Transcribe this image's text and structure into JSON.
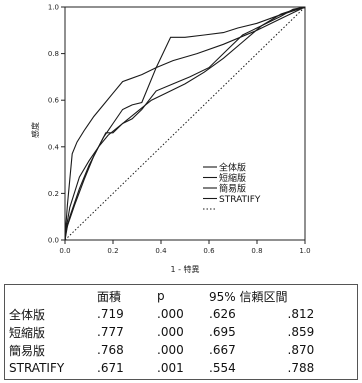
{
  "chart_data": {
    "type": "line",
    "title": "",
    "xlabel": "1 - 特異",
    "ylabel": "感度",
    "xlim": [
      0.0,
      1.0
    ],
    "ylim": [
      0.0,
      1.0
    ],
    "xticks": [
      "0.0",
      "0.2",
      "0.4",
      "0.6",
      "0.8",
      "1.0"
    ],
    "yticks": [
      "0.0",
      "0.2",
      "0.4",
      "0.6",
      "0.8",
      "1.0"
    ],
    "grid": false,
    "legend_position": "bottom-right",
    "series": [
      {
        "name": "全体版",
        "color": "#1a1a1a",
        "x": [
          0.0,
          0.005,
          0.02,
          0.06,
          0.1,
          0.14,
          0.18,
          0.24,
          0.3,
          0.36,
          0.42,
          0.5,
          0.58,
          0.66,
          0.74,
          0.82,
          0.9,
          0.96,
          1.0
        ],
        "y": [
          0.0,
          0.05,
          0.14,
          0.27,
          0.34,
          0.4,
          0.45,
          0.5,
          0.55,
          0.6,
          0.63,
          0.67,
          0.72,
          0.78,
          0.85,
          0.92,
          0.97,
          0.99,
          1.0
        ]
      },
      {
        "name": "短縮版",
        "color": "#1a1a1a",
        "x": [
          0.0,
          0.005,
          0.01,
          0.03,
          0.05,
          0.08,
          0.12,
          0.16,
          0.2,
          0.24,
          0.32,
          0.38,
          0.45,
          0.55,
          0.66,
          0.8,
          0.92,
          1.0
        ],
        "y": [
          0.0,
          0.08,
          0.15,
          0.37,
          0.42,
          0.47,
          0.53,
          0.58,
          0.63,
          0.68,
          0.71,
          0.74,
          0.77,
          0.8,
          0.84,
          0.9,
          0.96,
          1.0
        ]
      },
      {
        "name": "簡易版",
        "color": "#1a1a1a",
        "x": [
          0.0,
          0.01,
          0.04,
          0.08,
          0.12,
          0.16,
          0.2,
          0.24,
          0.28,
          0.32,
          0.38,
          0.44,
          0.5,
          0.58,
          0.66,
          0.72,
          0.8,
          0.88,
          0.94,
          1.0
        ],
        "y": [
          0.0,
          0.06,
          0.15,
          0.26,
          0.36,
          0.44,
          0.5,
          0.56,
          0.58,
          0.59,
          0.74,
          0.87,
          0.87,
          0.88,
          0.89,
          0.91,
          0.93,
          0.96,
          0.98,
          1.0
        ]
      },
      {
        "name": "STRATIFY",
        "color": "#1a1a1a",
        "x": [
          0.0,
          0.005,
          0.02,
          0.06,
          0.1,
          0.14,
          0.17,
          0.2,
          0.24,
          0.28,
          0.32,
          0.38,
          0.45,
          0.52,
          0.6,
          0.68,
          0.74,
          0.82,
          0.9,
          0.95,
          1.0
        ],
        "y": [
          0.0,
          0.04,
          0.1,
          0.22,
          0.32,
          0.4,
          0.46,
          0.46,
          0.5,
          0.52,
          0.56,
          0.64,
          0.67,
          0.7,
          0.74,
          0.82,
          0.88,
          0.92,
          0.96,
          0.99,
          1.0
        ]
      },
      {
        "name": "",
        "color": "#1a1a1a",
        "dashed": true,
        "x": [
          0.0,
          1.0
        ],
        "y": [
          0.0,
          1.0
        ]
      }
    ]
  },
  "table": {
    "headers": [
      "",
      "面積",
      "p",
      "95% 信頼区間",
      ""
    ],
    "rows": [
      {
        "name": "全体版",
        "area": ".719",
        "p": ".000",
        "lo": ".626",
        "hi": ".812"
      },
      {
        "name": "短縮版",
        "area": ".777",
        "p": ".000",
        "lo": ".695",
        "hi": ".859"
      },
      {
        "name": "簡易版",
        "area": ".768",
        "p": ".000",
        "lo": ".667",
        "hi": ".870"
      },
      {
        "name": "STRATIFY",
        "area": ".671",
        "p": ".001",
        "lo": ".554",
        "hi": ".788"
      }
    ]
  }
}
